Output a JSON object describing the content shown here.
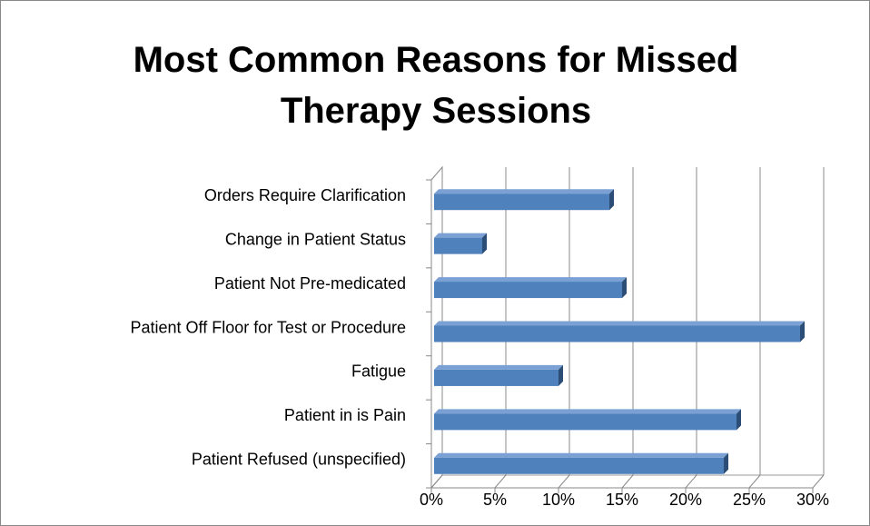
{
  "chart_data": {
    "type": "bar",
    "orientation": "horizontal",
    "title": "Most Common Reasons for Missed Therapy Sessions",
    "categories": [
      "Orders Require Clarification",
      "Change in Patient Status",
      "Patient Not Pre-medicated",
      "Patient Off Floor for Test or Procedure",
      "Fatigue",
      "Patient in is Pain",
      "Patient Refused (unspecified)"
    ],
    "values": [
      14,
      4,
      15,
      29,
      10,
      24,
      23
    ],
    "color": "#4f81bd",
    "xlim": [
      0,
      30
    ],
    "xticks": [
      {
        "value": 0,
        "label": "0%"
      },
      {
        "value": 5,
        "label": "5%"
      },
      {
        "value": 10,
        "label": "10%"
      },
      {
        "value": 15,
        "label": "15%"
      },
      {
        "value": 20,
        "label": "20%"
      },
      {
        "value": 25,
        "label": "25%"
      },
      {
        "value": 30,
        "label": "30%"
      }
    ],
    "grid": true
  }
}
